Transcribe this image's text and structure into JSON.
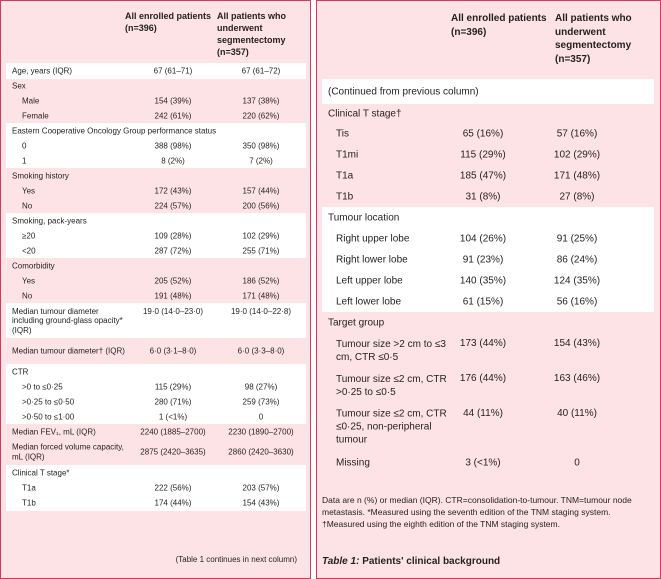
{
  "left": {
    "col1": "All enrolled patients (n=396)",
    "col2": "All patients who underwent segmentectomy (n=357)",
    "rows": [
      {
        "label": "Age, years (IQR)",
        "v1": "67 (61–71)",
        "v2": "67 (61–72)"
      },
      {
        "label": "Sex",
        "v1": "",
        "v2": ""
      },
      {
        "label": "Male",
        "v1": "154 (39%)",
        "v2": "137 (38%)"
      },
      {
        "label": "Female",
        "v1": "242 (61%)",
        "v2": "220 (62%)"
      },
      {
        "label": "Eastern Cooperative Oncology Group performance status",
        "v1": "",
        "v2": ""
      },
      {
        "label": "0",
        "v1": "388 (98%)",
        "v2": "350 (98%)"
      },
      {
        "label": "1",
        "v1": "8 (2%)",
        "v2": "7 (2%)"
      },
      {
        "label": "Smoking history",
        "v1": "",
        "v2": ""
      },
      {
        "label": "Yes",
        "v1": "172 (43%)",
        "v2": "157 (44%)"
      },
      {
        "label": "No",
        "v1": "224 (57%)",
        "v2": "200 (56%)"
      },
      {
        "label": "Smoking, pack-years",
        "v1": "",
        "v2": ""
      },
      {
        "label": "≥20",
        "v1": "109 (28%)",
        "v2": "102 (29%)"
      },
      {
        "label": "<20",
        "v1": "287 (72%)",
        "v2": "255 (71%)"
      },
      {
        "label": "Comorbidity",
        "v1": "",
        "v2": ""
      },
      {
        "label": "Yes",
        "v1": "205 (52%)",
        "v2": "186 (52%)"
      },
      {
        "label": "No",
        "v1": "191 (48%)",
        "v2": "171 (48%)"
      },
      {
        "label": "Median tumour diameter including ground-glass opacity* (IQR)",
        "v1": "19·0 (14·0–23·0)",
        "v2": "19·0 (14·0–22·8)"
      },
      {
        "label": "Median tumour diameter† (IQR)",
        "v1": "6·0 (3·1–8·0)",
        "v2": "6·0 (3·3–8·0)"
      },
      {
        "label": "CTR",
        "v1": "",
        "v2": ""
      },
      {
        "label": ">0 to ≤0·25",
        "v1": "115 (29%)",
        "v2": "98 (27%)"
      },
      {
        "label": ">0·25 to ≤0·50",
        "v1": "280 (71%)",
        "v2": "259 (73%)"
      },
      {
        "label": ">0·50 to ≤1·00",
        "v1": "1 (<1%)",
        "v2": "0"
      },
      {
        "label": "Median FEV₁, mL (IQR)",
        "v1": "2240 (1885–2700)",
        "v2": "2230 (1890–2700)"
      },
      {
        "label": "Median forced volume capacity, mL (IQR)",
        "v1": "2875 (2420–3635)",
        "v2": "2860 (2420–3630)"
      },
      {
        "label": "Clinical T stage*",
        "v1": "",
        "v2": ""
      },
      {
        "label": "T1a",
        "v1": "222 (56%)",
        "v2": "203 (57%)"
      },
      {
        "label": "T1b",
        "v1": "174 (44%)",
        "v2": "154 (43%)"
      }
    ],
    "footer": "(Table 1 continues in next column)"
  },
  "right": {
    "col1": "All enrolled patients (n=396)",
    "col2": "All patients who underwent segmentectomy (n=357)",
    "rows": [
      {
        "label": "(Continued from previous column)",
        "v1": "",
        "v2": ""
      },
      {
        "label": "Clinical T stage†",
        "v1": "",
        "v2": ""
      },
      {
        "label": "Tis",
        "v1": "65 (16%)",
        "v2": "57 (16%)"
      },
      {
        "label": "T1mi",
        "v1": "115 (29%)",
        "v2": "102 (29%)"
      },
      {
        "label": "T1a",
        "v1": "185 (47%)",
        "v2": "171 (48%)"
      },
      {
        "label": "T1b",
        "v1": "31 (8%)",
        "v2": "27 (8%)"
      },
      {
        "label": "Tumour location",
        "v1": "",
        "v2": ""
      },
      {
        "label": "Right upper lobe",
        "v1": "104 (26%)",
        "v2": "91 (25%)"
      },
      {
        "label": "Right lower lobe",
        "v1": "91 (23%)",
        "v2": "86 (24%)"
      },
      {
        "label": "Left upper lobe",
        "v1": "140 (35%)",
        "v2": "124 (35%)"
      },
      {
        "label": "Left lower lobe",
        "v1": "61 (15%)",
        "v2": "56 (16%)"
      },
      {
        "label": "Target group",
        "v1": "",
        "v2": ""
      },
      {
        "label": "Tumour size >2 cm to ≤3 cm, CTR ≤0·5",
        "v1": "173 (44%)",
        "v2": "154 (43%)"
      },
      {
        "label": "Tumour size ≤2 cm, CTR >0·25 to ≤0·5",
        "v1": "176 (44%)",
        "v2": "163 (46%)"
      },
      {
        "label": "Tumour size ≤2 cm, CTR ≤0·25, non-peripheral tumour",
        "v1": "44 (11%)",
        "v2": "40 (11%)"
      },
      {
        "label": "Missing",
        "v1": "3 (<1%)",
        "v2": "0"
      }
    ],
    "note": "Data are n (%) or median (IQR). CTR=consolidation-to-tumour. TNM=tumour node metastasis. *Measured using the seventh edition of the TNM staging system. †Measured using the eighth edition of the TNM staging system.",
    "caption_label": "Table 1:",
    "caption_text": " Patients' clinical background"
  }
}
